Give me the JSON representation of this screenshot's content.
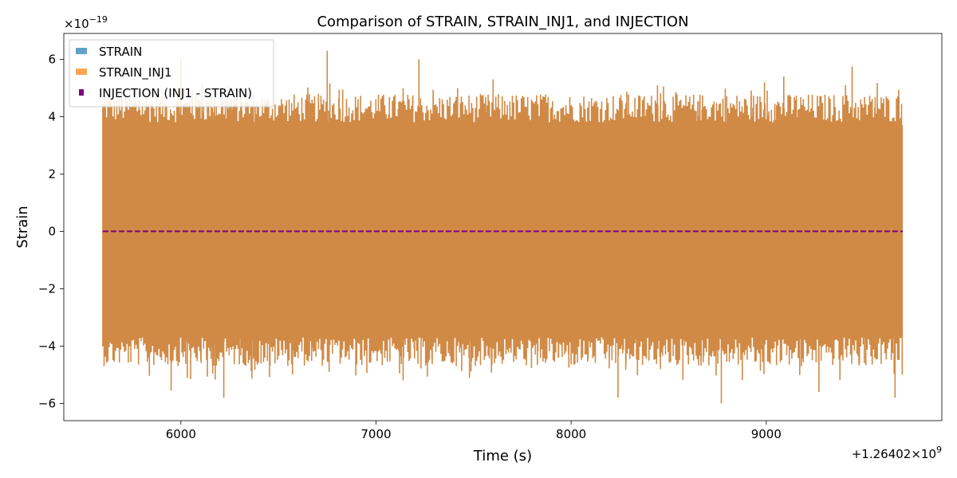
{
  "chart_data": {
    "type": "line",
    "title": "Comparison of STRAIN, STRAIN_INJ1, and INJECTION",
    "xlabel": "Time (s)",
    "ylabel": "Strain",
    "x_offset_label": "+1.26402×10",
    "x_offset_exponent": "9",
    "y_multiplier_label": "×10",
    "y_multiplier_exponent": "−19",
    "xlim": [
      5400,
      9900
    ],
    "ylim": [
      -6.6,
      6.9
    ],
    "x_ticks": [
      6000,
      7000,
      8000,
      9000
    ],
    "x_tick_labels": [
      "6000",
      "7000",
      "8000",
      "9000"
    ],
    "y_ticks": [
      -6,
      -4,
      -2,
      0,
      2,
      4,
      6
    ],
    "y_tick_labels": [
      "−6",
      "−4",
      "−2",
      "0",
      "2",
      "4",
      "6"
    ],
    "grid": false,
    "legend_position": "top-left",
    "legend": [
      "STRAIN",
      "STRAIN_INJ1",
      "INJECTION (INJ1 - STRAIN)"
    ],
    "colors": {
      "strain": "#1f77b4",
      "strain_inj1": "#ff7f0e",
      "injection": "#800080",
      "overlap": "#d08a46"
    },
    "series": [
      {
        "name": "STRAIN",
        "x_range": [
          5600,
          9700
        ],
        "envelope_typical": [
          -3.9,
          4.0
        ],
        "min": -6.0,
        "max": 6.3
      },
      {
        "name": "STRAIN_INJ1",
        "x_range": [
          5600,
          9700
        ],
        "envelope_typical": [
          -3.9,
          4.0
        ],
        "min": -6.0,
        "max": 6.3
      },
      {
        "name": "INJECTION (INJ1 - STRAIN)",
        "x_range": [
          5600,
          9700
        ],
        "values": [
          0,
          0
        ]
      }
    ],
    "peaks": [
      {
        "x": 6000,
        "y": 6.05
      },
      {
        "x": 6750,
        "y": 6.3
      },
      {
        "x": 7220,
        "y": 6.0
      },
      {
        "x": 7600,
        "y": 5.3
      },
      {
        "x": 9440,
        "y": 5.75
      },
      {
        "x": 9090,
        "y": 5.4
      },
      {
        "x": 5950,
        "y": -5.55
      },
      {
        "x": 6220,
        "y": -5.8
      },
      {
        "x": 8240,
        "y": -5.8
      },
      {
        "x": 8770,
        "y": -6.0
      },
      {
        "x": 9270,
        "y": -5.6
      },
      {
        "x": 9660,
        "y": -5.8
      }
    ]
  }
}
